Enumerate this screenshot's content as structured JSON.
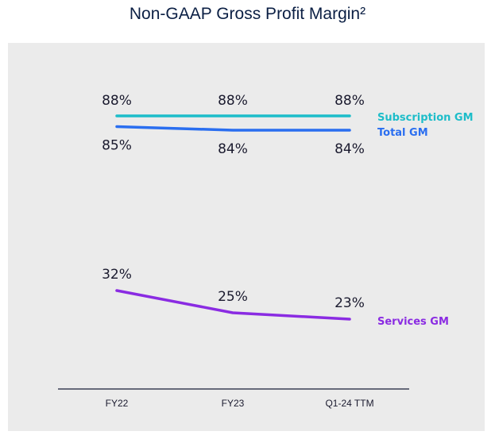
{
  "title": "Non-GAAP Gross Profit Margin²",
  "chart_data": {
    "type": "line",
    "title": "Non-GAAP Gross Profit Margin²",
    "categories": [
      "FY22",
      "FY23",
      "Q1-24 TTM"
    ],
    "ylim": [
      0,
      100
    ],
    "grid": false,
    "legend": "right",
    "series": [
      {
        "name": "Subscription GM",
        "values": [
          88,
          88,
          88
        ],
        "labels": [
          "88%",
          "88%",
          "88%"
        ],
        "color": "#1dbdc9"
      },
      {
        "name": "Total GM",
        "values": [
          85,
          84,
          84
        ],
        "labels": [
          "85%",
          "84%",
          "84%"
        ],
        "color": "#2a6ef0"
      },
      {
        "name": "Services GM",
        "values": [
          32,
          25,
          23
        ],
        "labels": [
          "32%",
          "25%",
          "23%"
        ],
        "color": "#8a2be2"
      }
    ]
  }
}
